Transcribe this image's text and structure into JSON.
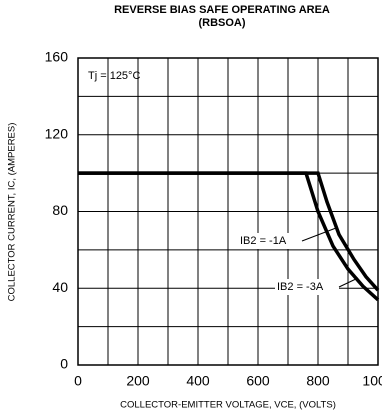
{
  "chart_data": {
    "type": "line",
    "title": "REVERSE BIAS SAFE OPERATING AREA",
    "subtitle": "(RBSOA)",
    "x_label": "COLLECTOR-EMITTER VOLTAGE, VCE, (VOLTS)",
    "y_label": "COLLECTOR CURRENT, IC, (AMPERES)",
    "annotation": "Tj = 125°C",
    "xlim": [
      0,
      1000
    ],
    "xticks": [
      0,
      200,
      400,
      600,
      800,
      1000
    ],
    "ylim": [
      0,
      160
    ],
    "yticks": [
      0,
      40,
      80,
      120,
      160
    ],
    "grid": true,
    "series": [
      {
        "name": "IB2 = -1A",
        "color": "#000000",
        "x": [
          0,
          760,
          800,
          850,
          900,
          950,
          1000
        ],
        "values": [
          100,
          100,
          80,
          62,
          50,
          41,
          34
        ]
      },
      {
        "name": "IB2 = -3A",
        "color": "#000000",
        "x": [
          0,
          800,
          830,
          870,
          920,
          960,
          1000
        ],
        "values": [
          100,
          100,
          85,
          68,
          55,
          46,
          39
        ]
      }
    ]
  }
}
